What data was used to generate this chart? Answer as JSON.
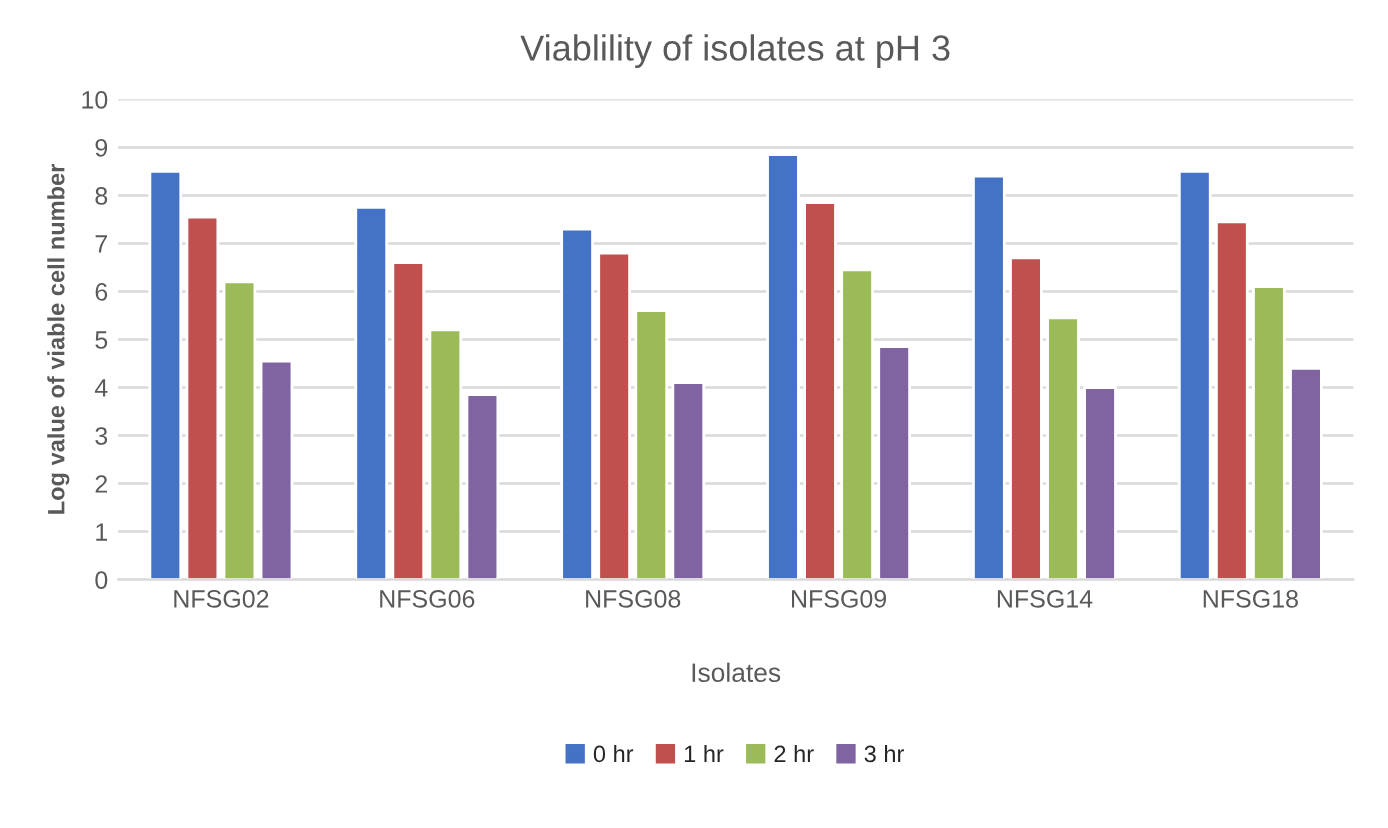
{
  "chart_data": {
    "type": "bar",
    "title": "Viablility of isolates at pH 3",
    "xlabel": "Isolates",
    "ylabel": "Log value of viable cell number",
    "categories": [
      "NFSG02",
      "NFSG06",
      "NFSG08",
      "NFSG09",
      "NFSG14",
      "NFSG18"
    ],
    "series": [
      {
        "name": "0 hr",
        "color": "#4472c4",
        "values": [
          8.5,
          7.75,
          7.3,
          8.85,
          8.4,
          8.5
        ]
      },
      {
        "name": "1 hr",
        "color": "#c0504d",
        "values": [
          7.55,
          6.6,
          6.8,
          7.85,
          6.7,
          7.45
        ]
      },
      {
        "name": "2 hr",
        "color": "#9bbb59",
        "values": [
          6.2,
          5.2,
          5.6,
          6.45,
          5.45,
          6.1
        ]
      },
      {
        "name": "3 hr",
        "color": "#8064a2",
        "values": [
          4.55,
          3.85,
          4.1,
          4.85,
          4.0,
          4.4
        ]
      }
    ],
    "ylim": [
      0,
      10
    ],
    "yticks": [
      0,
      1,
      2,
      3,
      4,
      5,
      6,
      7,
      8,
      9,
      10
    ],
    "grid": "y",
    "legend": "bottom"
  }
}
